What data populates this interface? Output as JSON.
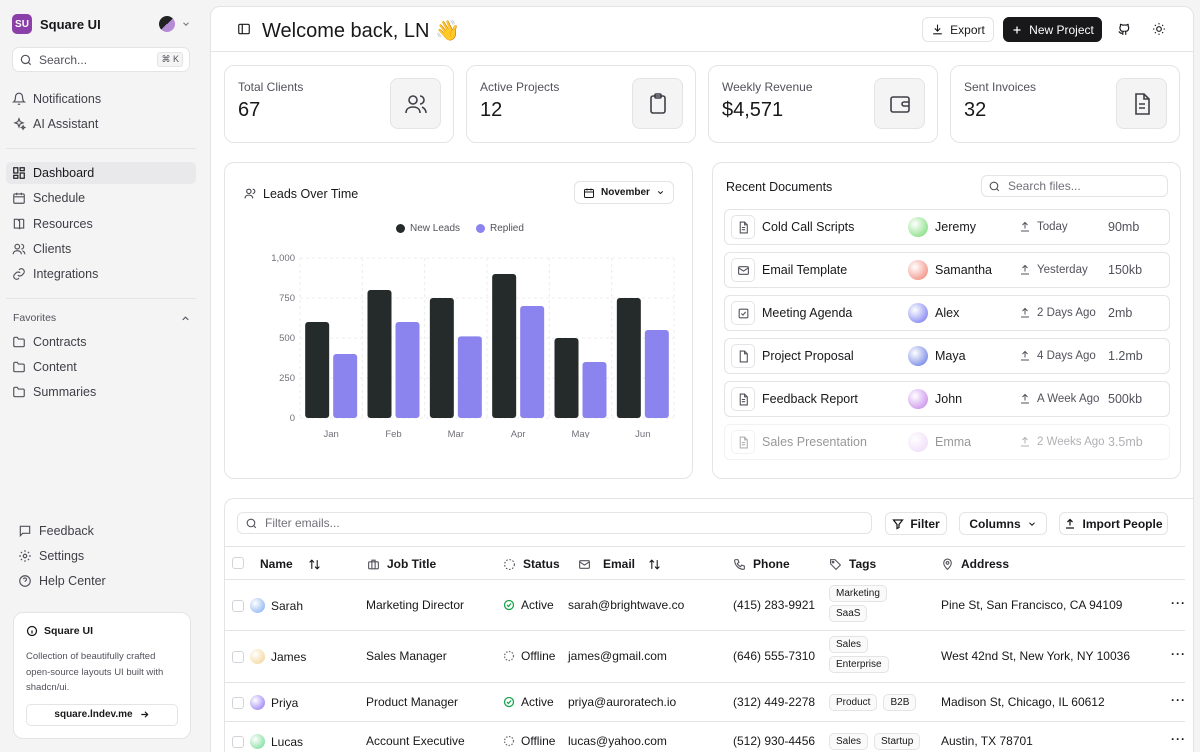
{
  "brand": {
    "logo": "SU",
    "name": "Square UI"
  },
  "search": {
    "placeholder": "Search...",
    "shortcut": "⌘ K"
  },
  "nav_top": [
    {
      "label": "Notifications",
      "icon": "bell-icon"
    },
    {
      "label": "AI Assistant",
      "icon": "sparkles-icon"
    }
  ],
  "nav_main": [
    {
      "label": "Dashboard",
      "icon": "grid-icon"
    },
    {
      "label": "Schedule",
      "icon": "calendar-icon"
    },
    {
      "label": "Resources",
      "icon": "book-icon"
    },
    {
      "label": "Clients",
      "icon": "users-icon"
    },
    {
      "label": "Integrations",
      "icon": "link-icon"
    }
  ],
  "favorites": {
    "label": "Favorites",
    "items": [
      "Contracts",
      "Content",
      "Summaries"
    ]
  },
  "nav_bottom": [
    {
      "label": "Feedback",
      "icon": "message-icon"
    },
    {
      "label": "Settings",
      "icon": "gear-icon"
    },
    {
      "label": "Help Center",
      "icon": "help-icon"
    }
  ],
  "promo": {
    "title": "Square UI",
    "desc": "Collection of beautifully crafted open-source layouts UI built with shadcn/ui.",
    "link": "square.lndev.me"
  },
  "header": {
    "welcome": "Welcome back, LN 👋",
    "export": "Export",
    "new_project": "New Project"
  },
  "stats": [
    {
      "label": "Total Clients",
      "value": "67",
      "icon": "users-icon"
    },
    {
      "label": "Active Projects",
      "value": "12",
      "icon": "clipboard-icon"
    },
    {
      "label": "Weekly Revenue",
      "value": "$4,571",
      "icon": "wallet-icon"
    },
    {
      "label": "Sent Invoices",
      "value": "32",
      "icon": "file-icon"
    }
  ],
  "leads": {
    "title": "Leads Over Time",
    "month": "November"
  },
  "chart_data": {
    "type": "bar",
    "title": "Leads Over Time",
    "categories": [
      "Jan",
      "Feb",
      "Mar",
      "Apr",
      "May",
      "Jun"
    ],
    "series": [
      {
        "name": "New Leads",
        "color": "#252a2a",
        "values": [
          600,
          800,
          750,
          900,
          500,
          750
        ]
      },
      {
        "name": "Replied",
        "color": "#8b83ee",
        "values": [
          400,
          600,
          510,
          700,
          350,
          550
        ]
      }
    ],
    "yticks": [
      0,
      250,
      500,
      750,
      1000
    ],
    "ytick_labels": [
      "0",
      "250",
      "500",
      "750",
      "1,000"
    ],
    "ylim": [
      0,
      1000
    ],
    "grid": true,
    "legend": "top-center"
  },
  "docs": {
    "title": "Recent Documents",
    "search_placeholder": "Search files...",
    "rows": [
      {
        "name": "Cold Call Scripts",
        "owner": "Jeremy",
        "time": "Today",
        "size": "90mb",
        "icon": "doc-icon",
        "avatar": "#6fd86a"
      },
      {
        "name": "Email Template",
        "owner": "Samantha",
        "time": "Yesterday",
        "size": "150kb",
        "icon": "mail-icon",
        "avatar": "#f07a6a"
      },
      {
        "name": "Meeting Agenda",
        "owner": "Alex",
        "time": "2 Days Ago",
        "size": "2mb",
        "icon": "checkbox-icon",
        "avatar": "#6a6cf0"
      },
      {
        "name": "Project Proposal",
        "owner": "Maya",
        "time": "4 Days Ago",
        "size": "1.2mb",
        "icon": "file-icon",
        "avatar": "#5a6fe0"
      },
      {
        "name": "Feedback Report",
        "owner": "John",
        "time": "A Week Ago",
        "size": "500kb",
        "icon": "doc-icon",
        "avatar": "#c07ae8"
      },
      {
        "name": "Sales Presentation",
        "owner": "Emma",
        "time": "2 Weeks Ago",
        "size": "3.5mb",
        "icon": "doc-icon",
        "avatar": "#d8a8f0"
      }
    ]
  },
  "people": {
    "filter_placeholder": "Filter emails...",
    "filter": "Filter",
    "columns": "Columns",
    "import": "Import People",
    "headers": [
      "Name",
      "Job Title",
      "Status",
      "Email",
      "Phone",
      "Tags",
      "Address"
    ],
    "rows": [
      {
        "name": "Sarah",
        "job": "Marketing Director",
        "status": "Active",
        "email": "sarah@brightwave.co",
        "phone": "(415) 283-9921",
        "tags": [
          "Marketing",
          "SaaS"
        ],
        "address": "Pine St, San Francisco, CA 94109",
        "avatar": "#7aa8f0"
      },
      {
        "name": "James",
        "job": "Sales Manager",
        "status": "Offline",
        "email": "james@gmail.com",
        "phone": "(646) 555-7310",
        "tags": [
          "Sales",
          "Enterprise"
        ],
        "address": "West 42nd St, New York, NY 10036",
        "avatar": "#f0d08a"
      },
      {
        "name": "Priya",
        "job": "Product Manager",
        "status": "Active",
        "email": "priya@auroratech.io",
        "phone": "(312) 449-2278",
        "tags": [
          "Product",
          "B2B"
        ],
        "address": "Madison St, Chicago, IL 60612",
        "avatar": "#8a6cf0"
      },
      {
        "name": "Lucas",
        "job": "Account Executive",
        "status": "Offline",
        "email": "lucas@yahoo.com",
        "phone": "(512) 930-4456",
        "tags": [
          "Sales",
          "Startup"
        ],
        "address": "Austin, TX 78701",
        "avatar": "#6ad88a"
      }
    ]
  }
}
